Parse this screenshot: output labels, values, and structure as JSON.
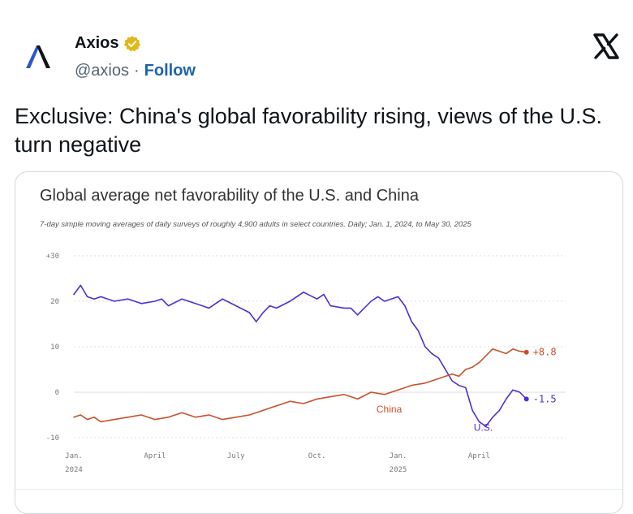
{
  "author": {
    "name": "Axios",
    "handle": "@axios",
    "separator": "·",
    "follow_label": "Follow",
    "avatar_icon": "axios-logo-icon",
    "verified_icon": "verified-badge-icon",
    "brand_color": "#1a3d8f",
    "verified_color": "#e2b719"
  },
  "platform_icon": "x-logo-icon",
  "tweet": {
    "text": "Exclusive: China's global favorability rising, views of the U.S. turn negative"
  },
  "chart_data": {
    "type": "line",
    "title": "Global average net favorability of the U.S. and China",
    "subtitle": "7-day simple moving averages of daily surveys of roughly 4,900 adults in select countries. Daily; Jan. 1, 2024, to May 30, 2025",
    "ylim": [
      -10,
      30
    ],
    "yticks": [
      {
        "value": 30,
        "label": "+30"
      },
      {
        "value": 20,
        "label": "20"
      },
      {
        "value": 10,
        "label": "10"
      },
      {
        "value": 0,
        "label": "0"
      },
      {
        "value": -10,
        "label": "-10"
      }
    ],
    "xlim": [
      0,
      17
    ],
    "xticks": [
      {
        "value": 0,
        "label": "Jan.",
        "sublabel": "2024"
      },
      {
        "value": 3,
        "label": "April",
        "sublabel": ""
      },
      {
        "value": 6,
        "label": "July",
        "sublabel": ""
      },
      {
        "value": 9,
        "label": "Oct.",
        "sublabel": ""
      },
      {
        "value": 12,
        "label": "Jan.",
        "sublabel": "2025"
      },
      {
        "value": 15,
        "label": "April",
        "sublabel": ""
      }
    ],
    "grid": true,
    "series": [
      {
        "name": "U.S.",
        "color": "#4b2fd1",
        "end_label": "-1.5",
        "x": [
          0,
          0.25,
          0.5,
          0.75,
          1,
          1.5,
          2,
          2.5,
          3,
          3.25,
          3.5,
          4,
          4.5,
          5,
          5.5,
          6,
          6.5,
          6.75,
          7,
          7.25,
          7.5,
          8,
          8.25,
          8.5,
          9,
          9.25,
          9.5,
          10,
          10.25,
          10.5,
          11,
          11.25,
          11.5,
          12,
          12.25,
          12.5,
          12.75,
          13,
          13.25,
          13.5,
          13.75,
          14,
          14.25,
          14.5,
          14.75,
          15,
          15.25,
          15.5,
          15.75,
          16,
          16.25,
          16.5,
          16.75
        ],
        "values": [
          21.5,
          23.5,
          21,
          20.5,
          21,
          20,
          20.5,
          19.5,
          20,
          20.5,
          19,
          20.5,
          19.5,
          18.5,
          20.5,
          19,
          17.5,
          15.5,
          17.5,
          19,
          18.5,
          20,
          21,
          22,
          20.5,
          21.5,
          19,
          18.5,
          18.5,
          17,
          20,
          21,
          20,
          21,
          19,
          15.5,
          13.5,
          10,
          8.5,
          7.5,
          5,
          2.5,
          1.5,
          1,
          -4,
          -6.5,
          -7.5,
          -5.5,
          -4,
          -1.5,
          0.5,
          0,
          -1.5
        ]
      },
      {
        "name": "China",
        "color": "#c8512b",
        "end_label": "+8.8",
        "x": [
          0,
          0.25,
          0.5,
          0.75,
          1,
          1.5,
          2,
          2.5,
          3,
          3.5,
          4,
          4.5,
          5,
          5.5,
          6,
          6.5,
          7,
          7.5,
          8,
          8.5,
          9,
          9.5,
          10,
          10.5,
          11,
          11.5,
          12,
          12.5,
          13,
          13.5,
          14,
          14.25,
          14.5,
          14.75,
          15,
          15.25,
          15.5,
          15.75,
          16,
          16.25,
          16.5,
          16.75
        ],
        "values": [
          -5.5,
          -5,
          -6,
          -5.5,
          -6.5,
          -6,
          -5.5,
          -5,
          -6,
          -5.5,
          -4.5,
          -5.5,
          -5,
          -6,
          -5.5,
          -5,
          -4,
          -3,
          -2,
          -2.5,
          -1.5,
          -1,
          -0.5,
          -1.5,
          0,
          -0.5,
          0.5,
          1.5,
          2,
          3,
          4,
          3.5,
          5,
          5.5,
          6.5,
          8,
          9.5,
          9,
          8.5,
          9.5,
          9,
          8.8
        ]
      }
    ],
    "annotations": [
      {
        "series": "China",
        "text": "China",
        "x": 11.2,
        "y": -4.5
      },
      {
        "series": "U.S.",
        "text": "U.S.",
        "x": 14.8,
        "y": -8.5
      }
    ]
  }
}
